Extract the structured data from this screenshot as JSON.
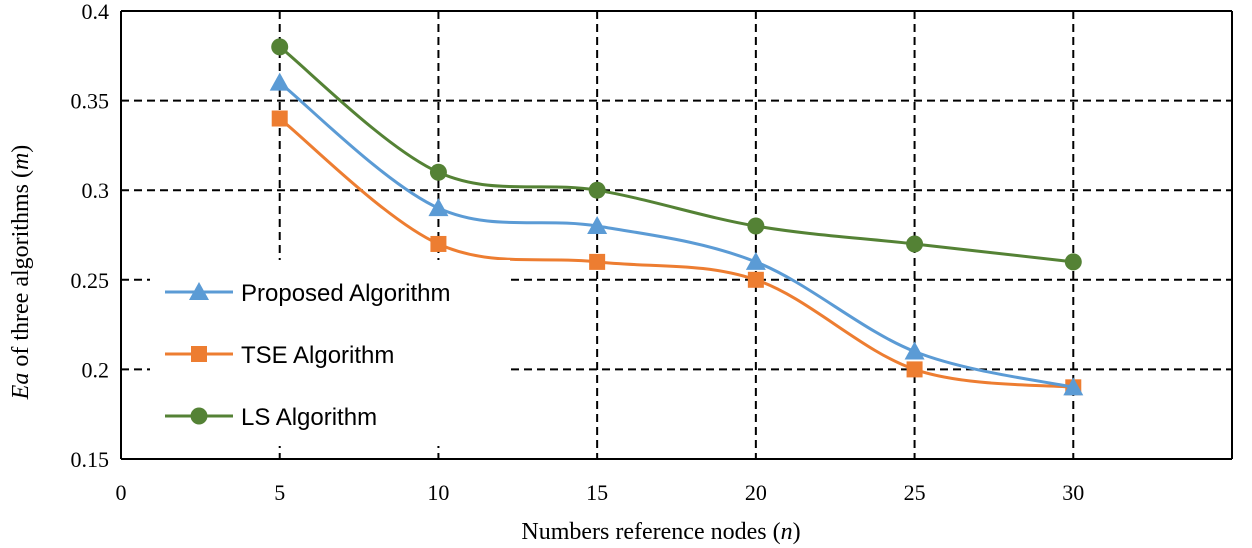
{
  "chart_data": {
    "type": "line",
    "title": "",
    "xlabel": "Numbers reference nodes (n)",
    "xlabel_parts": {
      "main": "Numbers reference nodes (",
      "var": "n",
      "end": ")"
    },
    "ylabel": "Ea of three algorithms (m)",
    "ylabel_parts": {
      "var1": "Ea",
      "main": " of three algorithms (",
      "var2": "m",
      "end": ")"
    },
    "xlim": [
      0,
      35
    ],
    "ylim": [
      0.15,
      0.4
    ],
    "x_ticks": [
      0,
      5,
      10,
      15,
      20,
      25,
      30
    ],
    "y_ticks": [
      0.15,
      0.2,
      0.25,
      0.3,
      0.35,
      0.4
    ],
    "x_tick_labels": [
      "0",
      "5",
      "10",
      "15",
      "20",
      "25",
      "30"
    ],
    "y_tick_labels": [
      "0.15",
      "0.2",
      "0.25",
      "0.3",
      "0.35",
      "0.4"
    ],
    "grid": true,
    "legend_position": "left",
    "x": [
      5,
      10,
      15,
      20,
      25,
      30
    ],
    "series": [
      {
        "name": "Proposed Algorithm",
        "marker": "triangle",
        "color": "#5B9BD5",
        "values": [
          0.36,
          0.29,
          0.28,
          0.26,
          0.21,
          0.19
        ]
      },
      {
        "name": "TSE Algorithm",
        "marker": "square",
        "color": "#ED7D31",
        "values": [
          0.34,
          0.27,
          0.26,
          0.25,
          0.2,
          0.19
        ]
      },
      {
        "name": "LS Algorithm",
        "marker": "circle",
        "color": "#548235",
        "values": [
          0.38,
          0.31,
          0.3,
          0.28,
          0.27,
          0.26
        ]
      }
    ]
  }
}
